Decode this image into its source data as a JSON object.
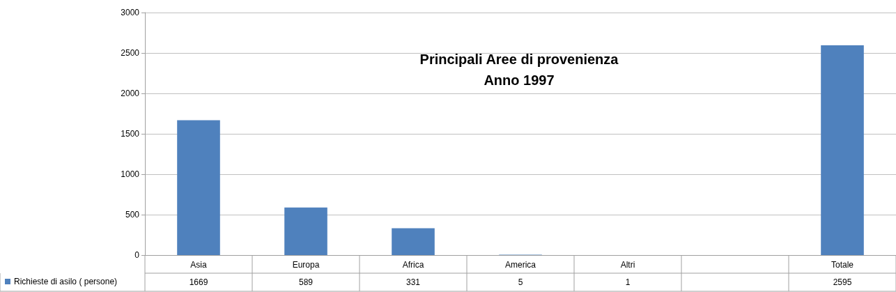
{
  "chart_data": {
    "type": "bar",
    "title": "Principali Aree di provenienza\nAnno 1997",
    "categories": [
      "Asia",
      "Europa",
      "Africa",
      "America",
      "Altri",
      null,
      "Totale"
    ],
    "series": [
      {
        "name": "Richieste di asilo ( persone)",
        "color": "#4f81bd",
        "values": [
          1669,
          589,
          331,
          5,
          1,
          null,
          2595
        ]
      }
    ],
    "ylim": [
      0,
      3000
    ],
    "yticks": [
      0,
      500,
      1000,
      1500,
      2000,
      2500,
      3000
    ],
    "grid": "y",
    "legend": "bottom left",
    "data_labels": true
  }
}
